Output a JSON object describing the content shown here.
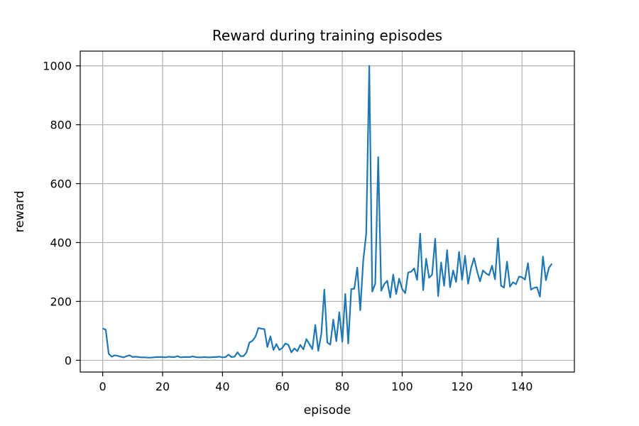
{
  "chart_data": {
    "type": "line",
    "title": "Reward during training episodes",
    "xlabel": "episode",
    "ylabel": "reward",
    "xlim": [
      -7.5,
      157.5
    ],
    "ylim": [
      -40,
      1050
    ],
    "xticks": [
      0,
      20,
      40,
      60,
      80,
      100,
      120,
      140
    ],
    "yticks": [
      0,
      200,
      400,
      600,
      800,
      1000
    ],
    "grid": true,
    "legend": "none",
    "series": [
      {
        "color": "#1f77b4",
        "x": [
          0,
          1,
          2,
          3,
          4,
          5,
          6,
          7,
          8,
          9,
          10,
          11,
          12,
          13,
          14,
          15,
          16,
          17,
          18,
          19,
          20,
          21,
          22,
          23,
          24,
          25,
          26,
          27,
          28,
          29,
          30,
          31,
          32,
          33,
          34,
          35,
          36,
          37,
          38,
          39,
          40,
          41,
          42,
          43,
          44,
          45,
          46,
          47,
          48,
          49,
          50,
          51,
          52,
          53,
          54,
          55,
          56,
          57,
          58,
          59,
          60,
          61,
          62,
          63,
          64,
          65,
          66,
          67,
          68,
          69,
          70,
          71,
          72,
          73,
          74,
          75,
          76,
          77,
          78,
          79,
          80,
          81,
          82,
          83,
          84,
          85,
          86,
          87,
          88,
          89,
          90,
          91,
          92,
          93,
          94,
          95,
          96,
          97,
          98,
          99,
          100,
          101,
          102,
          103,
          104,
          105,
          106,
          107,
          108,
          109,
          110,
          111,
          112,
          113,
          114,
          115,
          116,
          117,
          118,
          119,
          120,
          121,
          122,
          123,
          124,
          125,
          126,
          127,
          128,
          129,
          130,
          131,
          132,
          133,
          134,
          135,
          136,
          137,
          138,
          139,
          140,
          141,
          142,
          143,
          144,
          145,
          146,
          147,
          148,
          149,
          150
        ],
        "y": [
          108,
          104,
          22,
          12,
          17,
          15,
          12,
          10,
          14,
          17,
          11,
          12,
          11,
          10,
          10,
          9,
          9,
          10,
          11,
          11,
          11,
          10,
          12,
          11,
          11,
          14,
          10,
          11,
          11,
          11,
          13,
          11,
          10,
          10,
          11,
          10,
          10,
          11,
          11,
          12,
          10,
          11,
          19,
          11,
          12,
          27,
          14,
          14,
          26,
          60,
          66,
          80,
          110,
          107,
          106,
          45,
          81,
          35,
          55,
          35,
          42,
          57,
          52,
          27,
          40,
          31,
          52,
          37,
          72,
          55,
          38,
          120,
          32,
          90,
          240,
          60,
          53,
          138,
          65,
          163,
          63,
          225,
          57,
          242,
          243,
          315,
          170,
          338,
          430,
          1000,
          233,
          260,
          690,
          236,
          258,
          270,
          213,
          291,
          225,
          277,
          242,
          228,
          298,
          301,
          312,
          273,
          430,
          238,
          345,
          280,
          291,
          413,
          218,
          332,
          253,
          374,
          248,
          305,
          266,
          368,
          273,
          355,
          260,
          313,
          347,
          303,
          268,
          305,
          295,
          289,
          321,
          275,
          414,
          253,
          247,
          335,
          250,
          265,
          258,
          284,
          282,
          274,
          330,
          240,
          246,
          248,
          216,
          352,
          272,
          314,
          328
        ]
      }
    ]
  }
}
